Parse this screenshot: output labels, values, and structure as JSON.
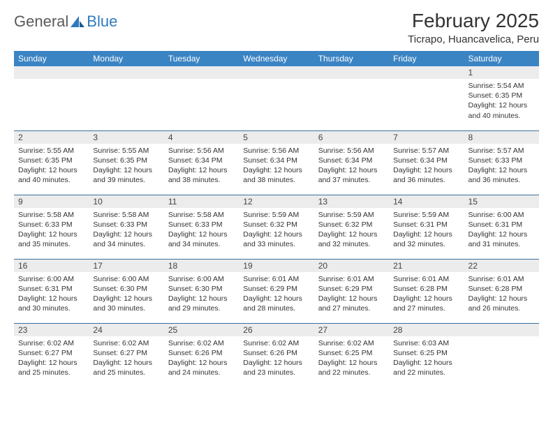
{
  "logo": {
    "word1": "General",
    "word2": "Blue"
  },
  "title": "February 2025",
  "location": "Ticrapo, Huancavelica, Peru",
  "colors": {
    "header_bg": "#3b84c4",
    "header_text": "#ffffff",
    "row_border": "#3b6fa0",
    "daynum_bg": "#ececec",
    "logo_gray": "#5a5a5a",
    "logo_blue": "#2f7abf"
  },
  "weekdays": [
    "Sunday",
    "Monday",
    "Tuesday",
    "Wednesday",
    "Thursday",
    "Friday",
    "Saturday"
  ],
  "weeks": [
    [
      {
        "empty": true
      },
      {
        "empty": true
      },
      {
        "empty": true
      },
      {
        "empty": true
      },
      {
        "empty": true
      },
      {
        "empty": true
      },
      {
        "n": "1",
        "sunrise": "Sunrise: 5:54 AM",
        "sunset": "Sunset: 6:35 PM",
        "daylight": "Daylight: 12 hours and 40 minutes."
      }
    ],
    [
      {
        "n": "2",
        "sunrise": "Sunrise: 5:55 AM",
        "sunset": "Sunset: 6:35 PM",
        "daylight": "Daylight: 12 hours and 40 minutes."
      },
      {
        "n": "3",
        "sunrise": "Sunrise: 5:55 AM",
        "sunset": "Sunset: 6:35 PM",
        "daylight": "Daylight: 12 hours and 39 minutes."
      },
      {
        "n": "4",
        "sunrise": "Sunrise: 5:56 AM",
        "sunset": "Sunset: 6:34 PM",
        "daylight": "Daylight: 12 hours and 38 minutes."
      },
      {
        "n": "5",
        "sunrise": "Sunrise: 5:56 AM",
        "sunset": "Sunset: 6:34 PM",
        "daylight": "Daylight: 12 hours and 38 minutes."
      },
      {
        "n": "6",
        "sunrise": "Sunrise: 5:56 AM",
        "sunset": "Sunset: 6:34 PM",
        "daylight": "Daylight: 12 hours and 37 minutes."
      },
      {
        "n": "7",
        "sunrise": "Sunrise: 5:57 AM",
        "sunset": "Sunset: 6:34 PM",
        "daylight": "Daylight: 12 hours and 36 minutes."
      },
      {
        "n": "8",
        "sunrise": "Sunrise: 5:57 AM",
        "sunset": "Sunset: 6:33 PM",
        "daylight": "Daylight: 12 hours and 36 minutes."
      }
    ],
    [
      {
        "n": "9",
        "sunrise": "Sunrise: 5:58 AM",
        "sunset": "Sunset: 6:33 PM",
        "daylight": "Daylight: 12 hours and 35 minutes."
      },
      {
        "n": "10",
        "sunrise": "Sunrise: 5:58 AM",
        "sunset": "Sunset: 6:33 PM",
        "daylight": "Daylight: 12 hours and 34 minutes."
      },
      {
        "n": "11",
        "sunrise": "Sunrise: 5:58 AM",
        "sunset": "Sunset: 6:33 PM",
        "daylight": "Daylight: 12 hours and 34 minutes."
      },
      {
        "n": "12",
        "sunrise": "Sunrise: 5:59 AM",
        "sunset": "Sunset: 6:32 PM",
        "daylight": "Daylight: 12 hours and 33 minutes."
      },
      {
        "n": "13",
        "sunrise": "Sunrise: 5:59 AM",
        "sunset": "Sunset: 6:32 PM",
        "daylight": "Daylight: 12 hours and 32 minutes."
      },
      {
        "n": "14",
        "sunrise": "Sunrise: 5:59 AM",
        "sunset": "Sunset: 6:31 PM",
        "daylight": "Daylight: 12 hours and 32 minutes."
      },
      {
        "n": "15",
        "sunrise": "Sunrise: 6:00 AM",
        "sunset": "Sunset: 6:31 PM",
        "daylight": "Daylight: 12 hours and 31 minutes."
      }
    ],
    [
      {
        "n": "16",
        "sunrise": "Sunrise: 6:00 AM",
        "sunset": "Sunset: 6:31 PM",
        "daylight": "Daylight: 12 hours and 30 minutes."
      },
      {
        "n": "17",
        "sunrise": "Sunrise: 6:00 AM",
        "sunset": "Sunset: 6:30 PM",
        "daylight": "Daylight: 12 hours and 30 minutes."
      },
      {
        "n": "18",
        "sunrise": "Sunrise: 6:00 AM",
        "sunset": "Sunset: 6:30 PM",
        "daylight": "Daylight: 12 hours and 29 minutes."
      },
      {
        "n": "19",
        "sunrise": "Sunrise: 6:01 AM",
        "sunset": "Sunset: 6:29 PM",
        "daylight": "Daylight: 12 hours and 28 minutes."
      },
      {
        "n": "20",
        "sunrise": "Sunrise: 6:01 AM",
        "sunset": "Sunset: 6:29 PM",
        "daylight": "Daylight: 12 hours and 27 minutes."
      },
      {
        "n": "21",
        "sunrise": "Sunrise: 6:01 AM",
        "sunset": "Sunset: 6:28 PM",
        "daylight": "Daylight: 12 hours and 27 minutes."
      },
      {
        "n": "22",
        "sunrise": "Sunrise: 6:01 AM",
        "sunset": "Sunset: 6:28 PM",
        "daylight": "Daylight: 12 hours and 26 minutes."
      }
    ],
    [
      {
        "n": "23",
        "sunrise": "Sunrise: 6:02 AM",
        "sunset": "Sunset: 6:27 PM",
        "daylight": "Daylight: 12 hours and 25 minutes."
      },
      {
        "n": "24",
        "sunrise": "Sunrise: 6:02 AM",
        "sunset": "Sunset: 6:27 PM",
        "daylight": "Daylight: 12 hours and 25 minutes."
      },
      {
        "n": "25",
        "sunrise": "Sunrise: 6:02 AM",
        "sunset": "Sunset: 6:26 PM",
        "daylight": "Daylight: 12 hours and 24 minutes."
      },
      {
        "n": "26",
        "sunrise": "Sunrise: 6:02 AM",
        "sunset": "Sunset: 6:26 PM",
        "daylight": "Daylight: 12 hours and 23 minutes."
      },
      {
        "n": "27",
        "sunrise": "Sunrise: 6:02 AM",
        "sunset": "Sunset: 6:25 PM",
        "daylight": "Daylight: 12 hours and 22 minutes."
      },
      {
        "n": "28",
        "sunrise": "Sunrise: 6:03 AM",
        "sunset": "Sunset: 6:25 PM",
        "daylight": "Daylight: 12 hours and 22 minutes."
      },
      {
        "empty": true
      }
    ]
  ]
}
